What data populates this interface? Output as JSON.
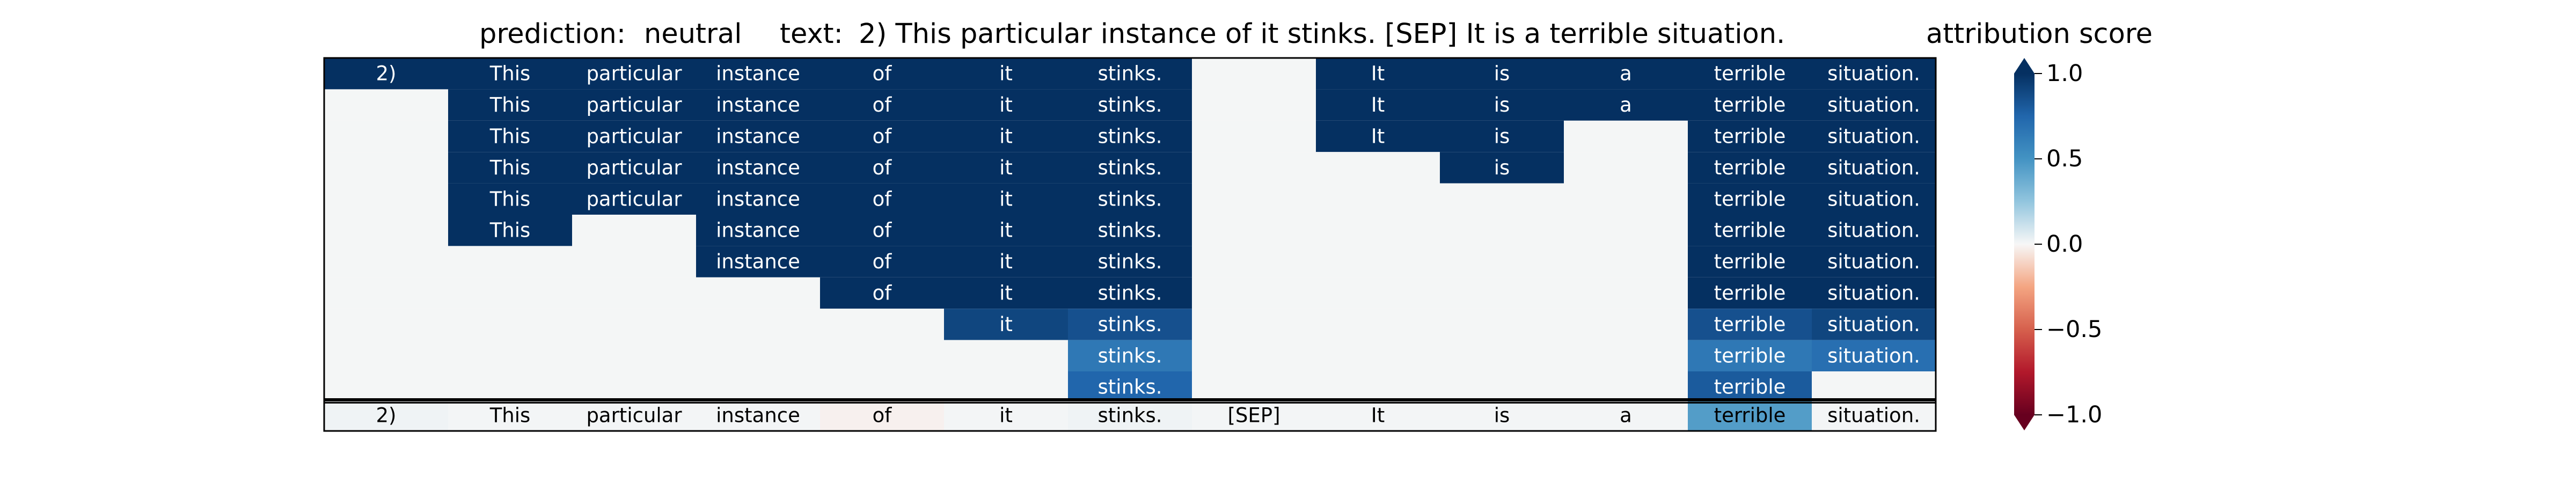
{
  "chart_data": {
    "type": "heatmap",
    "title": {
      "prediction_label": "prediction:",
      "prediction_value": "neutral",
      "text_label": "text:",
      "text_value": "2) This particular instance of it stinks. [SEP] It is a terrible situation."
    },
    "tokens": [
      "2)",
      "This",
      "particular",
      "instance",
      "of",
      "it",
      "stinks.",
      "[SEP]",
      "It",
      "is",
      "a",
      "terrible",
      "situation."
    ],
    "rows": [
      {
        "labels": [
          "2)",
          "This",
          "particular",
          "instance",
          "of",
          "it",
          "stinks.",
          "",
          "It",
          "is",
          "a",
          "terrible",
          "situation."
        ],
        "values": [
          1,
          1,
          1,
          1,
          1,
          1,
          1,
          0,
          1,
          1,
          1,
          1,
          1
        ]
      },
      {
        "labels": [
          "",
          "This",
          "particular",
          "instance",
          "of",
          "it",
          "stinks.",
          "",
          "It",
          "is",
          "a",
          "terrible",
          "situation."
        ],
        "values": [
          0,
          1,
          1,
          1,
          1,
          1,
          1,
          0,
          1,
          1,
          1,
          1,
          1
        ]
      },
      {
        "labels": [
          "",
          "This",
          "particular",
          "instance",
          "of",
          "it",
          "stinks.",
          "",
          "It",
          "is",
          "",
          "terrible",
          "situation."
        ],
        "values": [
          0,
          1,
          1,
          1,
          1,
          1,
          1,
          0,
          1,
          1,
          0,
          1,
          1
        ]
      },
      {
        "labels": [
          "",
          "This",
          "particular",
          "instance",
          "of",
          "it",
          "stinks.",
          "",
          "",
          "is",
          "",
          "terrible",
          "situation."
        ],
        "values": [
          0,
          1,
          1,
          1,
          1,
          1,
          1,
          0,
          0,
          1,
          0,
          1,
          1
        ]
      },
      {
        "labels": [
          "",
          "This",
          "particular",
          "instance",
          "of",
          "it",
          "stinks.",
          "",
          "",
          "",
          "",
          "terrible",
          "situation."
        ],
        "values": [
          0,
          1,
          1,
          1,
          1,
          1,
          1,
          0,
          0,
          0,
          0,
          1,
          1
        ]
      },
      {
        "labels": [
          "",
          "This",
          "",
          "instance",
          "of",
          "it",
          "stinks.",
          "",
          "",
          "",
          "",
          "terrible",
          "situation."
        ],
        "values": [
          0,
          1,
          0,
          1,
          1,
          1,
          1,
          0,
          0,
          0,
          0,
          1,
          1
        ]
      },
      {
        "labels": [
          "",
          "",
          "",
          "instance",
          "of",
          "it",
          "stinks.",
          "",
          "",
          "",
          "",
          "terrible",
          "situation."
        ],
        "values": [
          0,
          0,
          0,
          1,
          1,
          1,
          1,
          0,
          0,
          0,
          0,
          1,
          1
        ]
      },
      {
        "labels": [
          "",
          "",
          "",
          "",
          "of",
          "it",
          "stinks.",
          "",
          "",
          "",
          "",
          "terrible",
          "situation."
        ],
        "values": [
          0,
          0,
          0,
          0,
          1,
          1,
          1,
          0,
          0,
          0,
          0,
          1,
          1
        ]
      },
      {
        "labels": [
          "",
          "",
          "",
          "",
          "",
          "it",
          "stinks.",
          "",
          "",
          "",
          "",
          "terrible",
          "situation."
        ],
        "values": [
          0,
          0,
          0,
          0,
          0,
          0.9,
          0.85,
          0,
          0,
          0,
          0,
          0.85,
          0.9
        ]
      },
      {
        "labels": [
          "",
          "",
          "",
          "",
          "",
          "",
          "stinks.",
          "",
          "",
          "",
          "",
          "terrible",
          "situation."
        ],
        "values": [
          0,
          0,
          0,
          0,
          0,
          0,
          0.65,
          0,
          0,
          0,
          0,
          0.65,
          0.7
        ]
      },
      {
        "labels": [
          "",
          "",
          "",
          "",
          "",
          "",
          "stinks.",
          "",
          "",
          "",
          "",
          "terrible",
          ""
        ],
        "values": [
          0,
          0,
          0,
          0,
          0,
          0,
          0.75,
          0,
          0,
          0,
          0,
          0.8,
          0
        ]
      }
    ],
    "attribution_row": {
      "labels": [
        "2)",
        "This",
        "particular",
        "instance",
        "of",
        "it",
        "stinks.",
        "[SEP]",
        "It",
        "is",
        "a",
        "terrible",
        "situation."
      ],
      "values": [
        0.02,
        0.01,
        0.01,
        0.01,
        -0.02,
        0.01,
        0.02,
        0.01,
        0.01,
        0.01,
        0.01,
        0.45,
        0.01
      ]
    },
    "colorbar": {
      "label": "attribution score",
      "range": [
        -1.0,
        1.0
      ],
      "ticks": [
        1.0,
        0.5,
        0.0,
        -0.5,
        -1.0
      ],
      "tick_labels": [
        "1.0",
        "0.5",
        "0.0",
        "−0.5",
        "−1.0"
      ],
      "colormap": "RdBu"
    },
    "colors": {
      "background_cell": "#f4f6f6",
      "light_text": "#ffffff",
      "dark_text": "#000000"
    }
  }
}
